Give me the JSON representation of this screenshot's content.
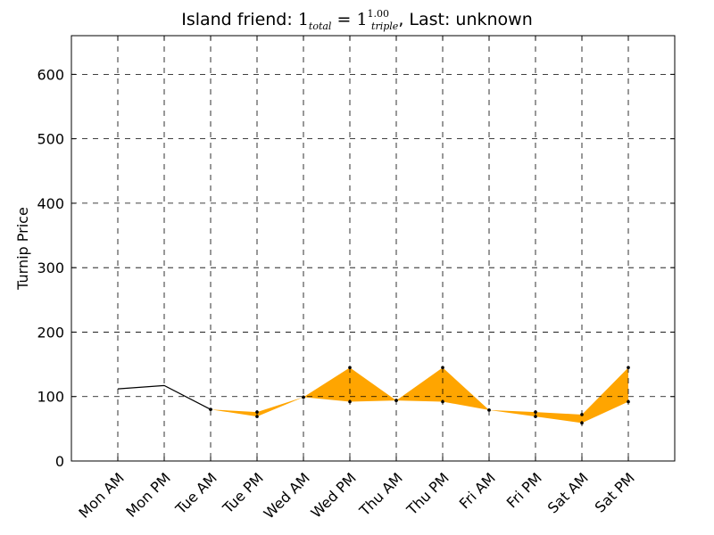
{
  "title": {
    "prefix": "Island friend: ",
    "math_base": "1",
    "math_sub": "total",
    "math_eq": " = ",
    "math_base2": "1",
    "math_sup2": "1.00",
    "math_sub2": "triple",
    "suffix": ", Last: unknown"
  },
  "chart_data": {
    "type": "area",
    "categories": [
      "Mon AM",
      "Mon PM",
      "Tue AM",
      "Tue PM",
      "Wed AM",
      "Wed PM",
      "Thu AM",
      "Thu PM",
      "Fri AM",
      "Fri PM",
      "Sat AM",
      "Sat PM"
    ],
    "ylabel": "Turnip Price",
    "xlabel": "",
    "ylim": [
      0,
      660
    ],
    "yticks": [
      0,
      100,
      200,
      300,
      400,
      500,
      600
    ],
    "grid": true,
    "known_line": {
      "categories": [
        "Mon AM",
        "Mon PM",
        "Tue AM"
      ],
      "values": [
        112,
        117,
        80
      ],
      "color": "#000000"
    },
    "range_band": {
      "start_index": 2,
      "min": [
        80,
        69,
        99,
        92,
        94,
        92,
        79,
        69,
        59,
        92
      ],
      "max": [
        80,
        76,
        99,
        145,
        94,
        145,
        79,
        76,
        72,
        145
      ],
      "color": "#FFA500"
    }
  }
}
